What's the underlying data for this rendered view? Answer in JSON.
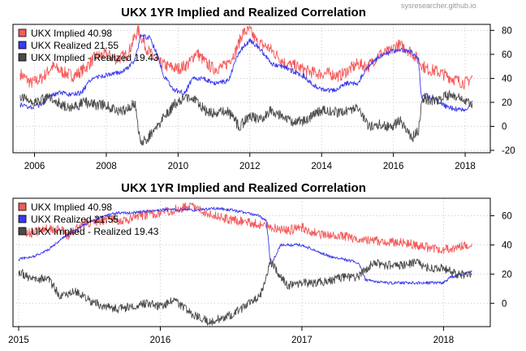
{
  "watermark": "sysresearcher.github.io",
  "colors": {
    "implied": "#f45a5a",
    "realized": "#3a3af0",
    "spread": "#4a4a4a"
  },
  "chart_data": [
    {
      "type": "line",
      "title": "UKX 1YR Implied and Realized Correlation",
      "xlabel": "",
      "ylabel": "",
      "xlim": [
        2005.4,
        2018.7
      ],
      "ylim": [
        -22,
        85
      ],
      "x_ticks": [
        {
          "value": 2006,
          "label": "2006"
        },
        {
          "value": 2008,
          "label": "2008"
        },
        {
          "value": 2010,
          "label": "2010"
        },
        {
          "value": 2012,
          "label": "2012"
        },
        {
          "value": 2014,
          "label": "2014"
        },
        {
          "value": 2016,
          "label": "2016"
        },
        {
          "value": 2018,
          "label": "2018"
        }
      ],
      "y_ticks": [
        -20,
        0,
        20,
        40,
        60,
        80
      ],
      "grid": true,
      "y_axis_side": "right",
      "legend_position": "top-left",
      "series": [
        {
          "name": "UKX Implied 40.98",
          "color": "#f45a5a",
          "points": [
            [
              2005.6,
              44
            ],
            [
              2005.9,
              36
            ],
            [
              2006.2,
              40
            ],
            [
              2006.5,
              50
            ],
            [
              2006.8,
              45
            ],
            [
              2007.1,
              42
            ],
            [
              2007.4,
              48
            ],
            [
              2007.7,
              58
            ],
            [
              2008.0,
              60
            ],
            [
              2008.3,
              56
            ],
            [
              2008.6,
              60
            ],
            [
              2008.8,
              75
            ],
            [
              2008.9,
              80
            ],
            [
              2009.1,
              66
            ],
            [
              2009.4,
              54
            ],
            [
              2009.7,
              50
            ],
            [
              2010.0,
              48
            ],
            [
              2010.3,
              52
            ],
            [
              2010.5,
              62
            ],
            [
              2010.8,
              52
            ],
            [
              2011.0,
              48
            ],
            [
              2011.3,
              50
            ],
            [
              2011.6,
              62
            ],
            [
              2011.8,
              78
            ],
            [
              2012.0,
              80
            ],
            [
              2012.2,
              70
            ],
            [
              2012.5,
              66
            ],
            [
              2012.8,
              58
            ],
            [
              2013.0,
              52
            ],
            [
              2013.3,
              50
            ],
            [
              2013.6,
              46
            ],
            [
              2013.9,
              44
            ],
            [
              2014.2,
              44
            ],
            [
              2014.5,
              42
            ],
            [
              2014.8,
              48
            ],
            [
              2015.0,
              52
            ],
            [
              2015.3,
              50
            ],
            [
              2015.6,
              60
            ],
            [
              2015.9,
              62
            ],
            [
              2016.1,
              68
            ],
            [
              2016.3,
              66
            ],
            [
              2016.5,
              62
            ],
            [
              2016.7,
              55
            ],
            [
              2016.9,
              48
            ],
            [
              2017.2,
              46
            ],
            [
              2017.5,
              42
            ],
            [
              2017.8,
              38
            ],
            [
              2018.0,
              36
            ],
            [
              2018.2,
              41
            ]
          ]
        },
        {
          "name": "UKX Realized 21.55",
          "color": "#3a3af0",
          "points": [
            [
              2005.6,
              18
            ],
            [
              2005.9,
              16
            ],
            [
              2006.2,
              18
            ],
            [
              2006.4,
              26
            ],
            [
              2006.7,
              28
            ],
            [
              2007.0,
              26
            ],
            [
              2007.3,
              28
            ],
            [
              2007.6,
              40
            ],
            [
              2007.9,
              42
            ],
            [
              2008.2,
              44
            ],
            [
              2008.5,
              46
            ],
            [
              2008.8,
              55
            ],
            [
              2008.95,
              75
            ],
            [
              2009.2,
              74
            ],
            [
              2009.4,
              62
            ],
            [
              2009.6,
              42
            ],
            [
              2009.9,
              30
            ],
            [
              2010.2,
              28
            ],
            [
              2010.4,
              40
            ],
            [
              2010.7,
              40
            ],
            [
              2011.0,
              36
            ],
            [
              2011.4,
              38
            ],
            [
              2011.7,
              62
            ],
            [
              2012.0,
              72
            ],
            [
              2012.3,
              64
            ],
            [
              2012.6,
              52
            ],
            [
              2012.9,
              50
            ],
            [
              2013.2,
              46
            ],
            [
              2013.5,
              42
            ],
            [
              2013.8,
              34
            ],
            [
              2014.1,
              30
            ],
            [
              2014.4,
              30
            ],
            [
              2014.7,
              36
            ],
            [
              2015.0,
              36
            ],
            [
              2015.3,
              50
            ],
            [
              2015.6,
              58
            ],
            [
              2015.9,
              62
            ],
            [
              2016.2,
              64
            ],
            [
              2016.5,
              62
            ],
            [
              2016.7,
              56
            ],
            [
              2016.78,
              24
            ],
            [
              2016.9,
              26
            ],
            [
              2017.2,
              22
            ],
            [
              2017.5,
              16
            ],
            [
              2017.8,
              14
            ],
            [
              2018.0,
              13
            ],
            [
              2018.2,
              21.5
            ]
          ]
        },
        {
          "name": "UKX Implied - Realized 19.43",
          "color": "#4a4a4a",
          "points": [
            [
              2005.6,
              26
            ],
            [
              2005.9,
              20
            ],
            [
              2006.2,
              22
            ],
            [
              2006.5,
              24
            ],
            [
              2006.8,
              17
            ],
            [
              2007.1,
              16
            ],
            [
              2007.4,
              20
            ],
            [
              2007.7,
              18
            ],
            [
              2008.0,
              18
            ],
            [
              2008.3,
              12
            ],
            [
              2008.6,
              14
            ],
            [
              2008.8,
              20
            ],
            [
              2008.95,
              -15
            ],
            [
              2009.2,
              -8
            ],
            [
              2009.4,
              -2
            ],
            [
              2009.6,
              8
            ],
            [
              2009.9,
              18
            ],
            [
              2010.2,
              24
            ],
            [
              2010.5,
              22
            ],
            [
              2010.8,
              12
            ],
            [
              2011.1,
              12
            ],
            [
              2011.4,
              12
            ],
            [
              2011.7,
              0
            ],
            [
              2012.0,
              8
            ],
            [
              2012.3,
              6
            ],
            [
              2012.6,
              14
            ],
            [
              2012.9,
              8
            ],
            [
              2013.2,
              4
            ],
            [
              2013.5,
              4
            ],
            [
              2013.8,
              10
            ],
            [
              2014.1,
              14
            ],
            [
              2014.4,
              12
            ],
            [
              2014.7,
              12
            ],
            [
              2015.0,
              16
            ],
            [
              2015.3,
              0
            ],
            [
              2015.6,
              2
            ],
            [
              2015.9,
              0
            ],
            [
              2016.2,
              4
            ],
            [
              2016.5,
              -10
            ],
            [
              2016.7,
              -4
            ],
            [
              2016.8,
              24
            ],
            [
              2017.0,
              22
            ],
            [
              2017.3,
              22
            ],
            [
              2017.6,
              28
            ],
            [
              2017.9,
              22
            ],
            [
              2018.2,
              19.4
            ]
          ]
        }
      ]
    },
    {
      "type": "line",
      "title": "UKX 1YR Implied and Realized Correlation",
      "xlabel": "",
      "ylabel": "",
      "xlim": [
        2014.96,
        2018.33
      ],
      "ylim": [
        -16,
        72
      ],
      "x_ticks": [
        {
          "value": 2015,
          "label": "2015"
        },
        {
          "value": 2016,
          "label": "2016"
        },
        {
          "value": 2017,
          "label": "2017"
        },
        {
          "value": 2018,
          "label": "2018"
        }
      ],
      "y_ticks": [
        0,
        20,
        40,
        60
      ],
      "grid": true,
      "y_axis_side": "right",
      "legend_position": "top-left",
      "series": [
        {
          "name": "UKX Implied 40.98",
          "color": "#f45a5a",
          "points": [
            [
              2015.0,
              50
            ],
            [
              2015.1,
              48
            ],
            [
              2015.2,
              52
            ],
            [
              2015.3,
              50
            ],
            [
              2015.35,
              46
            ],
            [
              2015.45,
              54
            ],
            [
              2015.55,
              56
            ],
            [
              2015.65,
              58
            ],
            [
              2015.75,
              56
            ],
            [
              2015.85,
              60
            ],
            [
              2016.0,
              62
            ],
            [
              2016.1,
              64
            ],
            [
              2016.2,
              67
            ],
            [
              2016.3,
              63
            ],
            [
              2016.4,
              60
            ],
            [
              2016.5,
              57
            ],
            [
              2016.6,
              56
            ],
            [
              2016.7,
              54
            ],
            [
              2016.8,
              52
            ],
            [
              2016.9,
              50
            ],
            [
              2017.0,
              52
            ],
            [
              2017.1,
              48
            ],
            [
              2017.2,
              46
            ],
            [
              2017.3,
              46
            ],
            [
              2017.4,
              44
            ],
            [
              2017.5,
              43
            ],
            [
              2017.6,
              42
            ],
            [
              2017.7,
              42
            ],
            [
              2017.8,
              40
            ],
            [
              2017.9,
              38
            ],
            [
              2018.0,
              37
            ],
            [
              2018.1,
              38
            ],
            [
              2018.2,
              41
            ]
          ]
        },
        {
          "name": "UKX Realized 21.55",
          "color": "#3a3af0",
          "points": [
            [
              2015.0,
              30
            ],
            [
              2015.1,
              32
            ],
            [
              2015.2,
              36
            ],
            [
              2015.3,
              44
            ],
            [
              2015.4,
              50
            ],
            [
              2015.5,
              56
            ],
            [
              2015.6,
              60
            ],
            [
              2015.7,
              62
            ],
            [
              2015.8,
              62
            ],
            [
              2015.9,
              63
            ],
            [
              2016.0,
              64
            ],
            [
              2016.2,
              64
            ],
            [
              2016.4,
              65
            ],
            [
              2016.5,
              64
            ],
            [
              2016.6,
              62
            ],
            [
              2016.7,
              60
            ],
            [
              2016.75,
              56
            ],
            [
              2016.78,
              26
            ],
            [
              2016.85,
              40
            ],
            [
              2017.0,
              40
            ],
            [
              2017.1,
              36
            ],
            [
              2017.2,
              32
            ],
            [
              2017.3,
              30
            ],
            [
              2017.4,
              28
            ],
            [
              2017.45,
              16
            ],
            [
              2017.6,
              14
            ],
            [
              2017.8,
              14
            ],
            [
              2018.0,
              14
            ],
            [
              2018.05,
              18
            ],
            [
              2018.2,
              21.5
            ]
          ]
        },
        {
          "name": "UKX Implied - Realized 19.43",
          "color": "#4a4a4a",
          "points": [
            [
              2015.0,
              22
            ],
            [
              2015.1,
              16
            ],
            [
              2015.2,
              18
            ],
            [
              2015.3,
              4
            ],
            [
              2015.4,
              8
            ],
            [
              2015.5,
              2
            ],
            [
              2015.6,
              -2
            ],
            [
              2015.7,
              -4
            ],
            [
              2015.8,
              -2
            ],
            [
              2015.9,
              0
            ],
            [
              2016.0,
              -2
            ],
            [
              2016.1,
              2
            ],
            [
              2016.2,
              -6
            ],
            [
              2016.35,
              -13
            ],
            [
              2016.5,
              -8
            ],
            [
              2016.6,
              -2
            ],
            [
              2016.7,
              4
            ],
            [
              2016.78,
              28
            ],
            [
              2016.9,
              12
            ],
            [
              2017.0,
              14
            ],
            [
              2017.1,
              14
            ],
            [
              2017.2,
              16
            ],
            [
              2017.3,
              18
            ],
            [
              2017.4,
              18
            ],
            [
              2017.5,
              28
            ],
            [
              2017.6,
              26
            ],
            [
              2017.7,
              26
            ],
            [
              2017.8,
              28
            ],
            [
              2017.9,
              24
            ],
            [
              2018.0,
              24
            ],
            [
              2018.1,
              20
            ],
            [
              2018.2,
              19.4
            ]
          ]
        }
      ]
    }
  ]
}
